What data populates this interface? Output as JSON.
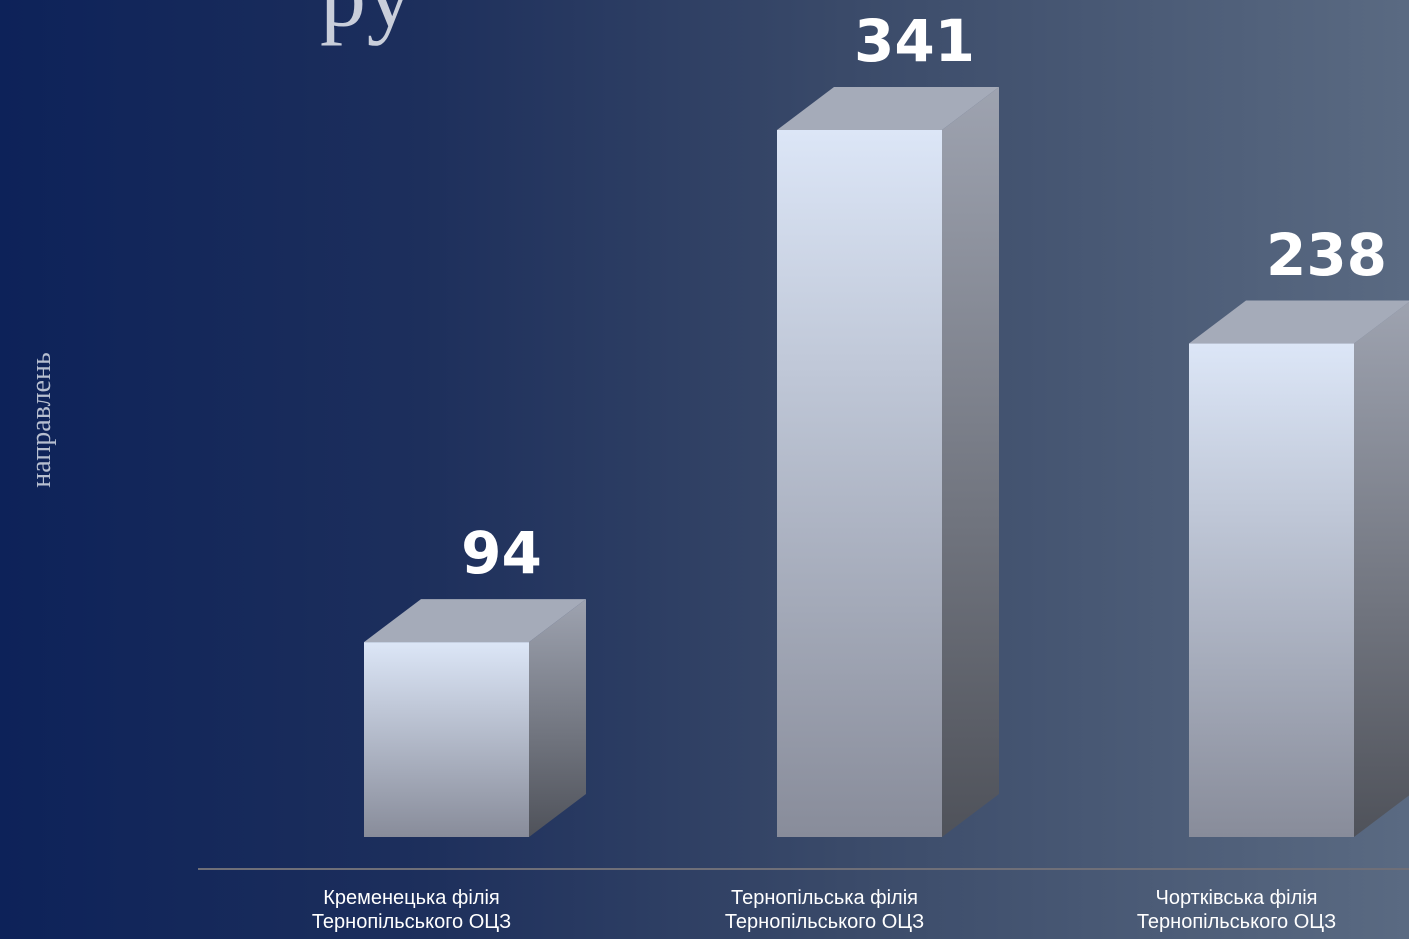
{
  "title_fragment": "ру",
  "chart_data": {
    "type": "bar",
    "title": "",
    "xlabel": "",
    "ylabel": "направлень",
    "categories": [
      "Кременецька філія Тернопільського ОЦЗ",
      "Тернопільська філія Тернопільського ОЦЗ",
      "Чортківська філія Тернопільського ОЦЗ"
    ],
    "category_lines": [
      [
        "Кременецька філія",
        "Тернопільського ОЦЗ"
      ],
      [
        "Тернопільська філія",
        "Тернопільського ОЦЗ"
      ],
      [
        "Чортківська філія",
        "Тернопільського ОЦЗ"
      ]
    ],
    "values": [
      94,
      341,
      238
    ],
    "value_labels": [
      "94",
      "341",
      "238"
    ],
    "ylim": [
      0,
      341
    ],
    "grid": false,
    "legend": "none"
  },
  "colors": {
    "bar_front_top": "#dce6f7",
    "bar_front_bottom": "#888c9a",
    "bar_side_top": "#9ea3b0",
    "bar_side_bottom": "#4f525a",
    "bar_top": "#a5abb9"
  }
}
